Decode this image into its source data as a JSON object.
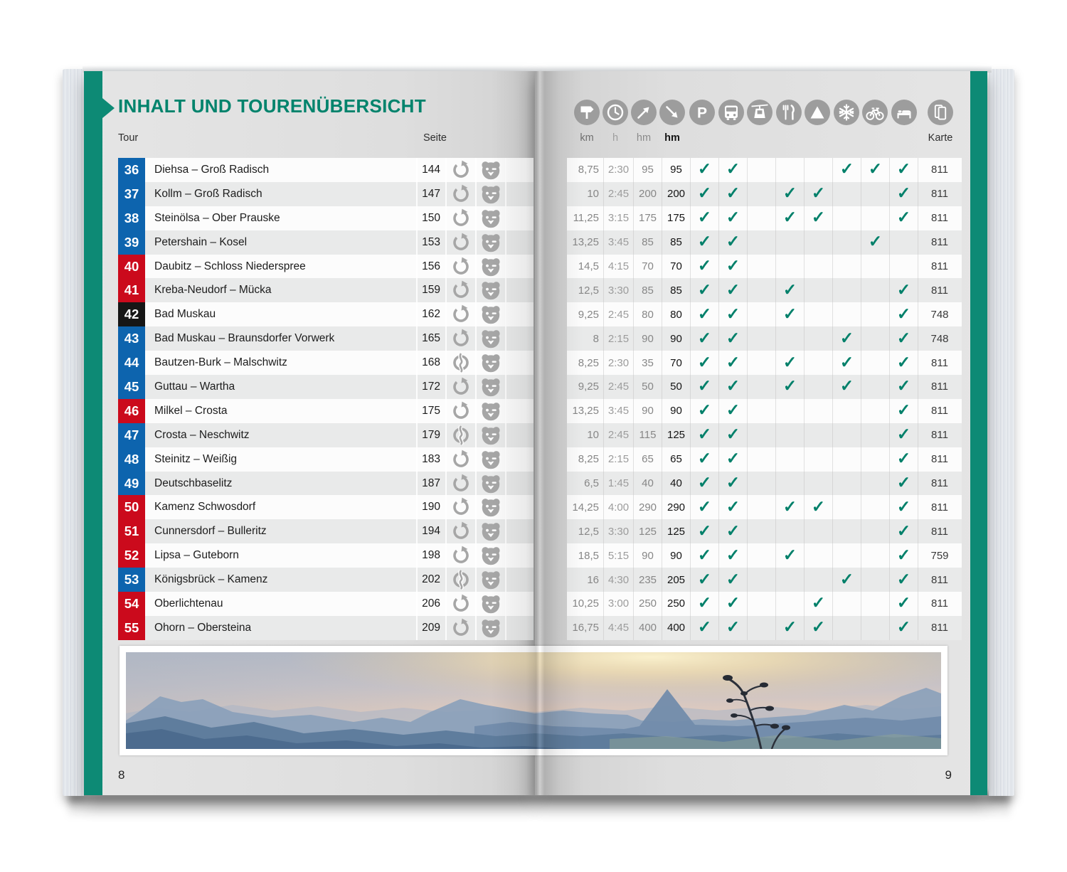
{
  "book": {
    "title": "INHALT UND TOURENÜBERSICHT",
    "page_number_left": "8",
    "page_number_right": "9"
  },
  "table": {
    "tour_label": "Tour",
    "seite_label": "Seite",
    "karte_label": "Karte",
    "measure_labels": [
      "km",
      "h",
      "hm",
      "hm"
    ],
    "check_glyph": "✓"
  },
  "legend_icons": [
    "signpost-icon",
    "clock-icon",
    "ascent-arrow-icon",
    "descent-arrow-icon",
    "parking-icon",
    "bus-icon",
    "cablecar-icon",
    "restaurant-icon",
    "peak-icon",
    "snowflake-icon",
    "bicycle-icon",
    "bed-icon",
    "map-sheets-icon"
  ],
  "feature_columns": [
    "parking",
    "bus",
    "cablecar",
    "restaurant",
    "peak",
    "winter",
    "bicycle",
    "bed"
  ],
  "colors": {
    "teal": "#0D8A75",
    "title_teal": "#00836C",
    "check": "#00806A",
    "blue": "#0D64AE",
    "red": "#CB0A1C",
    "black": "#161616",
    "icon_gray": "#9D9D9D",
    "row_icon_gray": "#A6A6A6"
  },
  "tours": [
    {
      "nr": "36",
      "color": "blue",
      "name": "Diehsa – Groß Radisch",
      "seite": "144",
      "route": "loop",
      "km": "8,75",
      "h": "2:30",
      "hm_up": "95",
      "hm_down": "95",
      "checks": [
        1,
        1,
        0,
        0,
        0,
        1,
        1,
        1
      ],
      "karte": "811"
    },
    {
      "nr": "37",
      "color": "blue",
      "name": "Kollm – Groß Radisch",
      "seite": "147",
      "route": "loop",
      "km": "10",
      "h": "2:45",
      "hm_up": "200",
      "hm_down": "200",
      "checks": [
        1,
        1,
        0,
        1,
        1,
        0,
        0,
        1
      ],
      "karte": "811"
    },
    {
      "nr": "38",
      "color": "blue",
      "name": "Steinölsa – Ober Prauske",
      "seite": "150",
      "route": "loop",
      "km": "11,25",
      "h": "3:15",
      "hm_up": "175",
      "hm_down": "175",
      "checks": [
        1,
        1,
        0,
        1,
        1,
        0,
        0,
        1
      ],
      "karte": "811"
    },
    {
      "nr": "39",
      "color": "blue",
      "name": "Petershain – Kosel",
      "seite": "153",
      "route": "loop",
      "km": "13,25",
      "h": "3:45",
      "hm_up": "85",
      "hm_down": "85",
      "checks": [
        1,
        1,
        0,
        0,
        0,
        0,
        1,
        0
      ],
      "karte": "811"
    },
    {
      "nr": "40",
      "color": "red",
      "name": "Daubitz – Schloss Niederspree",
      "seite": "156",
      "route": "loop",
      "km": "14,5",
      "h": "4:15",
      "hm_up": "70",
      "hm_down": "70",
      "checks": [
        1,
        1,
        0,
        0,
        0,
        0,
        0,
        0
      ],
      "karte": "811"
    },
    {
      "nr": "41",
      "color": "red",
      "name": "Kreba-Neudorf – Mücka",
      "seite": "159",
      "route": "loop",
      "km": "12,5",
      "h": "3:30",
      "hm_up": "85",
      "hm_down": "85",
      "checks": [
        1,
        1,
        0,
        1,
        0,
        0,
        0,
        1
      ],
      "karte": "811"
    },
    {
      "nr": "42",
      "color": "black",
      "name": "Bad Muskau",
      "seite": "162",
      "route": "loop",
      "km": "9,25",
      "h": "2:45",
      "hm_up": "80",
      "hm_down": "80",
      "checks": [
        1,
        1,
        0,
        1,
        0,
        0,
        0,
        1
      ],
      "karte": "748"
    },
    {
      "nr": "43",
      "color": "blue",
      "name": "Bad Muskau – Braunsdorfer Vorwerk",
      "seite": "165",
      "route": "loop",
      "km": "8",
      "h": "2:15",
      "hm_up": "90",
      "hm_down": "90",
      "checks": [
        1,
        1,
        0,
        0,
        0,
        1,
        0,
        1
      ],
      "karte": "748"
    },
    {
      "nr": "44",
      "color": "blue",
      "name": "Bautzen-Burk – Malschwitz",
      "seite": "168",
      "route": "oneway",
      "km": "8,25",
      "h": "2:30",
      "hm_up": "35",
      "hm_down": "70",
      "checks": [
        1,
        1,
        0,
        1,
        0,
        1,
        0,
        1
      ],
      "karte": "811"
    },
    {
      "nr": "45",
      "color": "blue",
      "name": "Guttau – Wartha",
      "seite": "172",
      "route": "loop",
      "km": "9,25",
      "h": "2:45",
      "hm_up": "50",
      "hm_down": "50",
      "checks": [
        1,
        1,
        0,
        1,
        0,
        1,
        0,
        1
      ],
      "karte": "811"
    },
    {
      "nr": "46",
      "color": "red",
      "name": "Milkel – Crosta",
      "seite": "175",
      "route": "loop",
      "km": "13,25",
      "h": "3:45",
      "hm_up": "90",
      "hm_down": "90",
      "checks": [
        1,
        1,
        0,
        0,
        0,
        0,
        0,
        1
      ],
      "karte": "811"
    },
    {
      "nr": "47",
      "color": "blue",
      "name": "Crosta – Neschwitz",
      "seite": "179",
      "route": "oneway",
      "km": "10",
      "h": "2:45",
      "hm_up": "115",
      "hm_down": "125",
      "checks": [
        1,
        1,
        0,
        0,
        0,
        0,
        0,
        1
      ],
      "karte": "811"
    },
    {
      "nr": "48",
      "color": "blue",
      "name": "Steinitz – Weißig",
      "seite": "183",
      "route": "loop",
      "km": "8,25",
      "h": "2:15",
      "hm_up": "65",
      "hm_down": "65",
      "checks": [
        1,
        1,
        0,
        0,
        0,
        0,
        0,
        1
      ],
      "karte": "811"
    },
    {
      "nr": "49",
      "color": "blue",
      "name": "Deutschbaselitz",
      "seite": "187",
      "route": "loop",
      "km": "6,5",
      "h": "1:45",
      "hm_up": "40",
      "hm_down": "40",
      "checks": [
        1,
        1,
        0,
        0,
        0,
        0,
        0,
        1
      ],
      "karte": "811"
    },
    {
      "nr": "50",
      "color": "red",
      "name": "Kamenz Schwosdorf",
      "seite": "190",
      "route": "loop",
      "km": "14,25",
      "h": "4:00",
      "hm_up": "290",
      "hm_down": "290",
      "checks": [
        1,
        1,
        0,
        1,
        1,
        0,
        0,
        1
      ],
      "karte": "811"
    },
    {
      "nr": "51",
      "color": "red",
      "name": "Cunnersdorf – Bulleritz",
      "seite": "194",
      "route": "loop",
      "km": "12,5",
      "h": "3:30",
      "hm_up": "125",
      "hm_down": "125",
      "checks": [
        1,
        1,
        0,
        0,
        0,
        0,
        0,
        1
      ],
      "karte": "811"
    },
    {
      "nr": "52",
      "color": "red",
      "name": "Lipsa – Guteborn",
      "seite": "198",
      "route": "loop",
      "km": "18,5",
      "h": "5:15",
      "hm_up": "90",
      "hm_down": "90",
      "checks": [
        1,
        1,
        0,
        1,
        0,
        0,
        0,
        1
      ],
      "karte": "759"
    },
    {
      "nr": "53",
      "color": "blue",
      "name": "Königsbrück – Kamenz",
      "seite": "202",
      "route": "oneway",
      "km": "16",
      "h": "4:30",
      "hm_up": "235",
      "hm_down": "205",
      "checks": [
        1,
        1,
        0,
        0,
        0,
        1,
        0,
        1
      ],
      "karte": "811"
    },
    {
      "nr": "54",
      "color": "red",
      "name": "Oberlichtenau",
      "seite": "206",
      "route": "loop",
      "km": "10,25",
      "h": "3:00",
      "hm_up": "250",
      "hm_down": "250",
      "checks": [
        1,
        1,
        0,
        0,
        1,
        0,
        0,
        1
      ],
      "karte": "811"
    },
    {
      "nr": "55",
      "color": "red",
      "name": "Ohorn – Obersteina",
      "seite": "209",
      "route": "loop",
      "km": "16,75",
      "h": "4:45",
      "hm_up": "400",
      "hm_down": "400",
      "checks": [
        1,
        1,
        0,
        1,
        1,
        0,
        0,
        1
      ],
      "karte": "811"
    }
  ]
}
